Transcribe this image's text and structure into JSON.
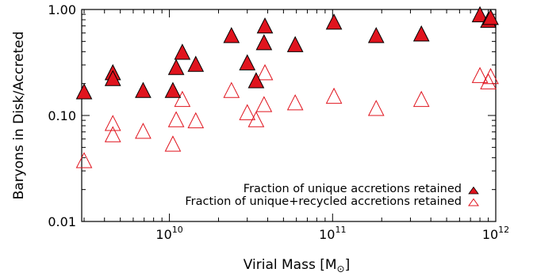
{
  "chart_data": {
    "type": "scatter",
    "title": "",
    "xlabel_main": "Virial Mass [M",
    "xlabel_unit_symbol": "⊙",
    "xlabel_close": "]",
    "ylabel": "Baryons in Disk/Accreted",
    "xscale": "log",
    "yscale": "log",
    "xlim": [
      2900000000.0,
      1000000000000.0
    ],
    "ylim": [
      0.01,
      1.0
    ],
    "x_ticks": [
      {
        "value": 10000000000.0,
        "base": "10",
        "exp": "10"
      },
      {
        "value": 100000000000.0,
        "base": "10",
        "exp": "11"
      },
      {
        "value": 1000000000000.0,
        "base": "10",
        "exp": "12"
      }
    ],
    "y_ticks": [
      {
        "value": 0.01,
        "label": "0.01"
      },
      {
        "value": 0.1,
        "label": "0.10"
      },
      {
        "value": 1.0,
        "label": "1.00"
      }
    ],
    "legend_position": "bottom-right",
    "colors": {
      "accent": "#e0141e",
      "axis": "#000000"
    },
    "series": [
      {
        "name": "Fraction of unique accretions retained",
        "marker": "filled-triangle",
        "points": [
          {
            "x": 3000000000.0,
            "y": 0.165
          },
          {
            "x": 4500000000.0,
            "y": 0.25
          },
          {
            "x": 4500000000.0,
            "y": 0.22
          },
          {
            "x": 6900000000.0,
            "y": 0.17
          },
          {
            "x": 10500000000.0,
            "y": 0.17
          },
          {
            "x": 11000000000.0,
            "y": 0.28
          },
          {
            "x": 12000000000.0,
            "y": 0.39
          },
          {
            "x": 14500000000.0,
            "y": 0.3
          },
          {
            "x": 24000000000.0,
            "y": 0.56
          },
          {
            "x": 30000000000.0,
            "y": 0.31
          },
          {
            "x": 34000000000.0,
            "y": 0.21
          },
          {
            "x": 38000000000.0,
            "y": 0.48
          },
          {
            "x": 38500000000.0,
            "y": 0.69
          },
          {
            "x": 59000000000.0,
            "y": 0.46
          },
          {
            "x": 102000000000.0,
            "y": 0.75
          },
          {
            "x": 185000000000.0,
            "y": 0.56
          },
          {
            "x": 350000000000.0,
            "y": 0.58
          },
          {
            "x": 800000000000.0,
            "y": 0.88
          },
          {
            "x": 900000000000.0,
            "y": 0.78
          },
          {
            "x": 930000000000.0,
            "y": 0.83
          }
        ]
      },
      {
        "name": "Fraction of unique+recycled accretions retained",
        "marker": "open-triangle",
        "points": [
          {
            "x": 3000000000.0,
            "y": 0.037
          },
          {
            "x": 4500000000.0,
            "y": 0.083
          },
          {
            "x": 4500000000.0,
            "y": 0.065
          },
          {
            "x": 6900000000.0,
            "y": 0.07
          },
          {
            "x": 10500000000.0,
            "y": 0.053
          },
          {
            "x": 11000000000.0,
            "y": 0.09
          },
          {
            "x": 12000000000.0,
            "y": 0.14
          },
          {
            "x": 14500000000.0,
            "y": 0.088
          },
          {
            "x": 24000000000.0,
            "y": 0.17
          },
          {
            "x": 30000000000.0,
            "y": 0.105
          },
          {
            "x": 34000000000.0,
            "y": 0.09
          },
          {
            "x": 38000000000.0,
            "y": 0.125
          },
          {
            "x": 38500000000.0,
            "y": 0.25
          },
          {
            "x": 59000000000.0,
            "y": 0.13
          },
          {
            "x": 102000000000.0,
            "y": 0.15
          },
          {
            "x": 185000000000.0,
            "y": 0.115
          },
          {
            "x": 350000000000.0,
            "y": 0.14
          },
          {
            "x": 800000000000.0,
            "y": 0.235
          },
          {
            "x": 900000000000.0,
            "y": 0.205
          },
          {
            "x": 930000000000.0,
            "y": 0.23
          }
        ]
      }
    ]
  }
}
